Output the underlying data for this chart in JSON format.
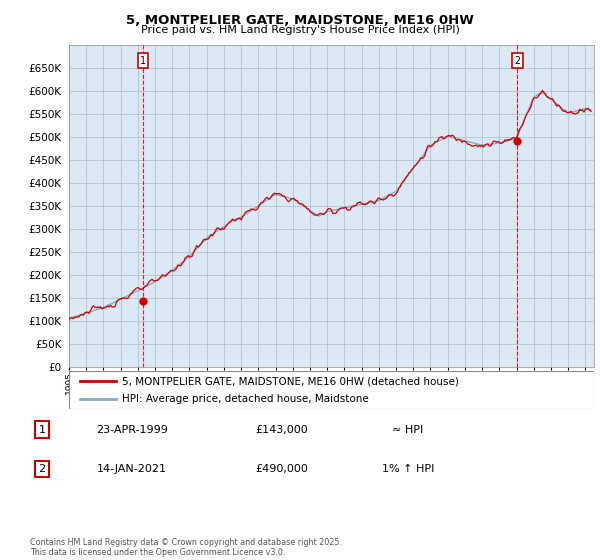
{
  "title": "5, MONTPELIER GATE, MAIDSTONE, ME16 0HW",
  "subtitle": "Price paid vs. HM Land Registry's House Price Index (HPI)",
  "legend_line1": "5, MONTPELIER GATE, MAIDSTONE, ME16 0HW (detached house)",
  "legend_line2": "HPI: Average price, detached house, Maidstone",
  "annotation1_date": "23-APR-1999",
  "annotation1_price": "£143,000",
  "annotation1_hpi": "≈ HPI",
  "annotation2_date": "14-JAN-2021",
  "annotation2_price": "£490,000",
  "annotation2_hpi": "1% ↑ HPI",
  "footer": "Contains HM Land Registry data © Crown copyright and database right 2025.\nThis data is licensed under the Open Government Licence v3.0.",
  "line_color": "#cc0000",
  "hpi_color": "#88aacc",
  "ylim": [
    0,
    700000
  ],
  "ytick_values": [
    0,
    50000,
    100000,
    150000,
    200000,
    250000,
    300000,
    350000,
    400000,
    450000,
    500000,
    550000,
    600000,
    650000
  ],
  "chart_bg": "#dce9f5",
  "background_color": "#ffffff",
  "grid_color": "#aabbcc",
  "marker1_x": 1999.3,
  "marker1_y": 143000,
  "marker2_x": 2021.04,
  "marker2_y": 490000,
  "xlim_left": 1995.0,
  "xlim_right": 2025.5
}
